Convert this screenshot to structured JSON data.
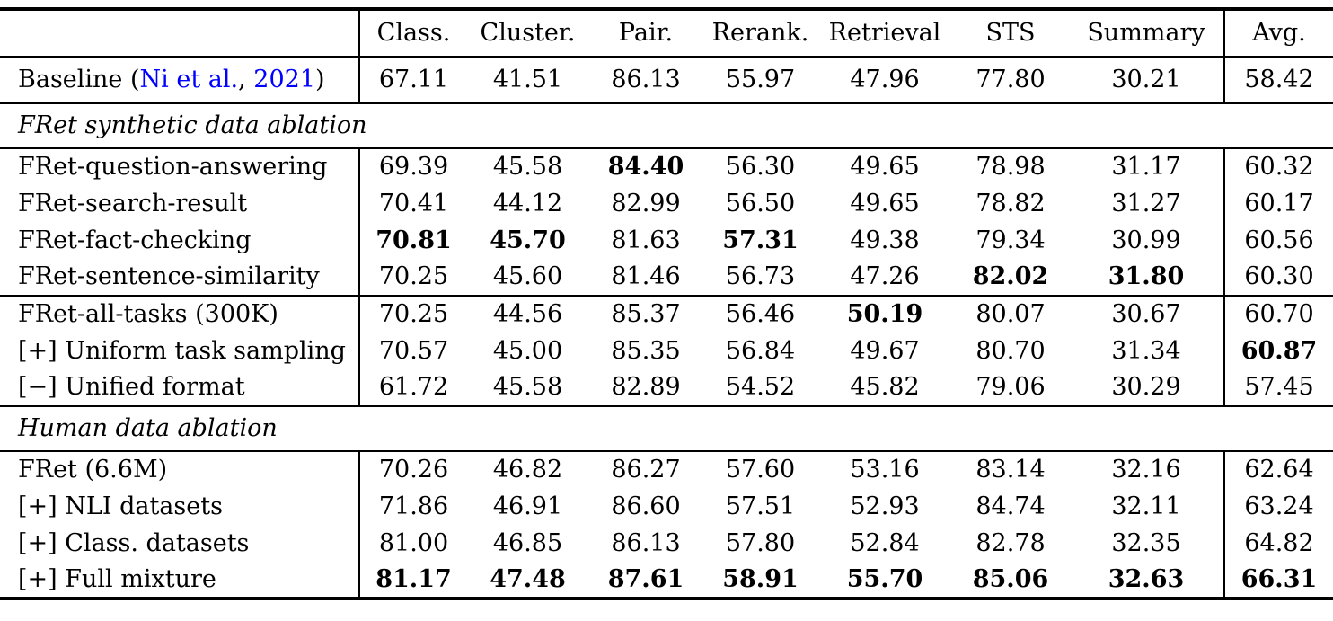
{
  "colors": {
    "link_blue": "#0000FF",
    "text": "#000000",
    "rule": "#000000"
  },
  "table": {
    "columns": [
      "Class.",
      "Cluster.",
      "Pair.",
      "Rerank.",
      "Retrieval",
      "STS",
      "Summary",
      "Avg."
    ],
    "blocks": [
      {
        "type": "rows",
        "rows": [
          {
            "label_parts": [
              {
                "t": "Baseline (",
                "link": false
              },
              {
                "t": "Ni et al.",
                "link": true
              },
              {
                "t": ", ",
                "link": false
              },
              {
                "t": "2021",
                "link": true
              },
              {
                "t": ")",
                "link": false
              }
            ],
            "values": [
              "67.11",
              "41.51",
              "86.13",
              "55.97",
              "47.96",
              "77.80",
              "30.21",
              "58.42"
            ],
            "bold": []
          }
        ]
      },
      {
        "type": "section",
        "title": "FRet synthetic data ablation"
      },
      {
        "type": "rows",
        "rows": [
          {
            "label": "FRet-question-answering",
            "values": [
              "69.39",
              "45.58",
              "84.40",
              "56.30",
              "49.65",
              "78.98",
              "31.17",
              "60.32"
            ],
            "bold": [
              2
            ]
          },
          {
            "label": "FRet-search-result",
            "values": [
              "70.41",
              "44.12",
              "82.99",
              "56.50",
              "49.65",
              "78.82",
              "31.27",
              "60.17"
            ],
            "bold": []
          },
          {
            "label": "FRet-fact-checking",
            "values": [
              "70.81",
              "45.70",
              "81.63",
              "57.31",
              "49.38",
              "79.34",
              "30.99",
              "60.56"
            ],
            "bold": [
              0,
              1,
              3
            ]
          },
          {
            "label": "FRet-sentence-similarity",
            "values": [
              "70.25",
              "45.60",
              "81.46",
              "56.73",
              "47.26",
              "82.02",
              "31.80",
              "60.30"
            ],
            "bold": [
              5,
              6
            ]
          }
        ]
      },
      {
        "type": "rows",
        "rows": [
          {
            "label": "FRet-all-tasks (300K)",
            "values": [
              "70.25",
              "44.56",
              "85.37",
              "56.46",
              "50.19",
              "80.07",
              "30.67",
              "60.70"
            ],
            "bold": [
              4
            ]
          },
          {
            "label": "[+] Uniform task sampling",
            "values": [
              "70.57",
              "45.00",
              "85.35",
              "56.84",
              "49.67",
              "80.70",
              "31.34",
              "60.87"
            ],
            "bold": [
              7
            ]
          },
          {
            "label": "[−] Unified format",
            "values": [
              "61.72",
              "45.58",
              "82.89",
              "54.52",
              "45.82",
              "79.06",
              "30.29",
              "57.45"
            ],
            "bold": []
          }
        ]
      },
      {
        "type": "section",
        "title": "Human data ablation"
      },
      {
        "type": "rows",
        "rows": [
          {
            "label": "FRet (6.6M)",
            "values": [
              "70.26",
              "46.82",
              "86.27",
              "57.60",
              "53.16",
              "83.14",
              "32.16",
              "62.64"
            ],
            "bold": []
          },
          {
            "label": "[+] NLI datasets",
            "values": [
              "71.86",
              "46.91",
              "86.60",
              "57.51",
              "52.93",
              "84.74",
              "32.11",
              "63.24"
            ],
            "bold": []
          },
          {
            "label": "[+] Class. datasets",
            "values": [
              "81.00",
              "46.85",
              "86.13",
              "57.80",
              "52.84",
              "82.78",
              "32.35",
              "64.82"
            ],
            "bold": []
          },
          {
            "label": "[+] Full mixture",
            "values": [
              "81.17",
              "47.48",
              "87.61",
              "58.91",
              "55.70",
              "85.06",
              "32.63",
              "66.31"
            ],
            "bold": [
              0,
              1,
              2,
              3,
              4,
              5,
              6,
              7
            ]
          }
        ]
      }
    ]
  }
}
